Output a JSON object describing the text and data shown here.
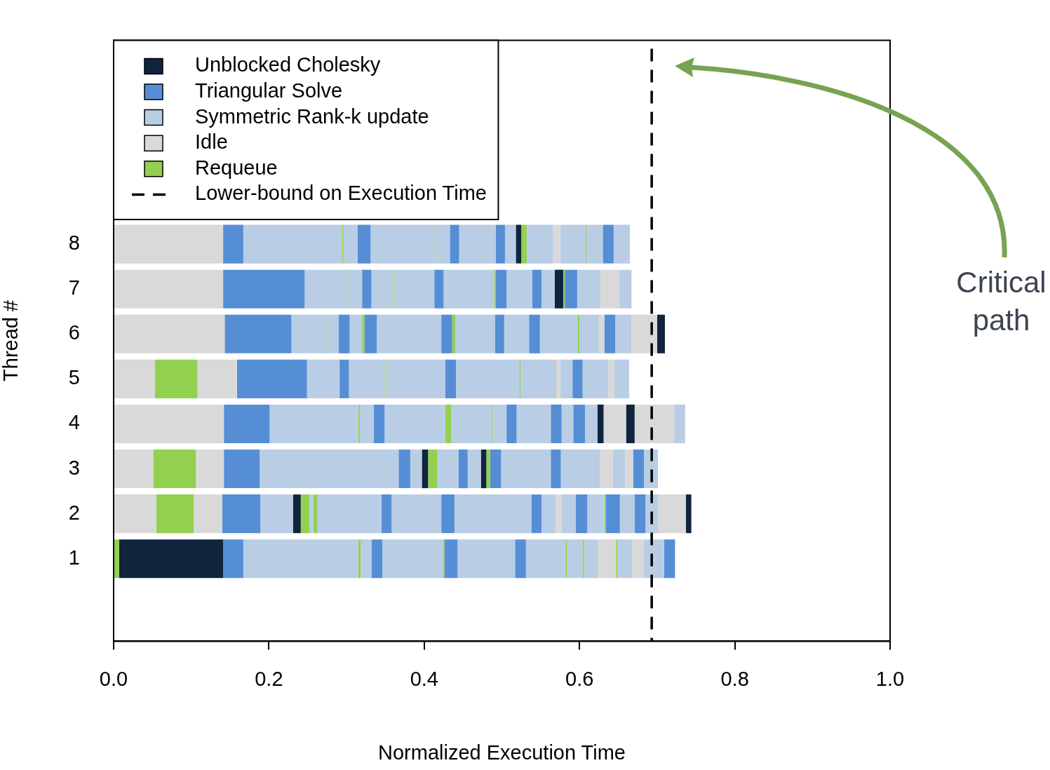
{
  "chart_data": {
    "type": "bar",
    "orientation": "horizontal",
    "stacked": true,
    "categories": [
      "8",
      "7",
      "6",
      "5",
      "4",
      "3",
      "2",
      "1"
    ],
    "xlabel": "Normalized Execution Time",
    "ylabel": "Thread #",
    "xlim": [
      0,
      1
    ],
    "xticks": [
      {
        "value": 0,
        "label": "0.0"
      },
      0.2,
      0.4,
      0.6,
      0.8,
      {
        "value": 1,
        "label": "1.0"
      }
    ],
    "legend": "top left",
    "ref_lines": [
      {
        "axis": "x",
        "value": 0.693,
        "label": "Lower-bound on Execution Time",
        "color": "#000000",
        "line_style": "dashed"
      }
    ],
    "annotations": [
      "Critical path"
    ],
    "series": [
      {
        "name": "Unblocked Cholesky",
        "color": "#10243e",
        "values": [
          null,
          null,
          null,
          null,
          null,
          null,
          null,
          null
        ]
      },
      {
        "name": "Triangular Solve",
        "color": "#558ed5",
        "values": [
          null,
          null,
          null,
          null,
          null,
          null,
          null,
          null
        ]
      },
      {
        "name": "Symmetric Rank-k update",
        "color": "#b9cde5",
        "values": [
          null,
          null,
          null,
          null,
          null,
          null,
          null,
          null
        ]
      },
      {
        "name": "Idle",
        "color": "#d9d9d9",
        "values": [
          null,
          null,
          null,
          null,
          null,
          null,
          null,
          null
        ]
      },
      {
        "name": "Requeue",
        "color": "#92d050",
        "values": [
          null,
          null,
          null,
          null,
          null,
          null,
          null,
          null
        ]
      },
      {
        "values": [
          0.141,
          0.141,
          0.143,
          0.053,
          0.142,
          0.051,
          0.055,
          0.007
        ],
        "colors": [
          "#d9d9d9",
          "#d9d9d9",
          "#d9d9d9",
          "#d9d9d9",
          "#d9d9d9",
          "#d9d9d9",
          "#d9d9d9",
          "#92d050"
        ]
      },
      {
        "values": [
          0.026,
          0.105,
          0.086,
          0.055,
          0.059,
          0.055,
          0.048,
          0.134
        ],
        "colors": [
          "#558ed5",
          "#558ed5",
          "#558ed5",
          "#92d050",
          "#558ed5",
          "#92d050",
          "#92d050",
          "#10243e"
        ]
      },
      {
        "values": [
          0.127,
          0.057,
          0.044,
          0.051,
          0.114,
          0.036,
          0.037,
          0.026
        ],
        "colors": [
          "#b9cde5",
          "#b9cde5",
          "#b9cde5",
          "#d9d9d9",
          "#b9cde5",
          "#d9d9d9",
          "#d9d9d9",
          "#558ed5"
        ]
      },
      {
        "values": [
          0.002,
          0.001,
          0.001,
          0.09,
          0.002,
          0.046,
          0.049,
          0.148
        ],
        "colors": [
          "#92d050",
          "#92d050",
          "#92d050",
          "#558ed5",
          "#92d050",
          "#558ed5",
          "#558ed5",
          "#b9cde5"
        ]
      },
      {
        "values": [
          0.018,
          0.016,
          0.016,
          0.042,
          0.018,
          0.179,
          0.042,
          0.003
        ],
        "colors": [
          "#b9cde5",
          "#b9cde5",
          "#b9cde5",
          "#b9cde5",
          "#b9cde5",
          "#b9cde5",
          "#b9cde5",
          "#92d050"
        ]
      },
      {
        "values": [
          0.017,
          0.012,
          0.014,
          0.012,
          0.014,
          0.015,
          0.01,
          0.014
        ],
        "colors": [
          "#558ed5",
          "#558ed5",
          "#558ed5",
          "#558ed5",
          "#558ed5",
          "#558ed5",
          "#10243e",
          "#b9cde5"
        ]
      },
      {
        "values": [
          0.085,
          0.029,
          0.016,
          0.048,
          0.078,
          0.015,
          0.011,
          0.014
        ],
        "colors": [
          "#b9cde5",
          "#b9cde5",
          "#b9cde5",
          "#b9cde5",
          "#b9cde5",
          "#b9cde5",
          "#92d050",
          "#558ed5"
        ]
      },
      {
        "values": [
          0.001,
          0.001,
          0.003,
          0.001,
          0.008,
          0.008,
          0.005,
          0.078
        ],
        "colors": [
          "#92d050",
          "#92d050",
          "#92d050",
          "#92d050",
          "#92d050",
          "#10243e",
          "#b9cde5",
          "#b9cde5"
        ]
      },
      {
        "values": [
          0.016,
          0.051,
          0.016,
          0.075,
          0.052,
          0.012,
          0.005,
          0.002
        ],
        "colors": [
          "#b9cde5",
          "#b9cde5",
          "#558ed5",
          "#b9cde5",
          "#b9cde5",
          "#92d050",
          "#92d050",
          "#92d050"
        ]
      },
      {
        "values": [
          0.012,
          0.012,
          0.083,
          0.014,
          0.001,
          0.027,
          0.083,
          0.017
        ],
        "colors": [
          "#558ed5",
          "#558ed5",
          "#b9cde5",
          "#558ed5",
          "#92d050",
          "#b9cde5",
          "#b9cde5",
          "#558ed5"
        ]
      },
      {
        "values": [
          0.047,
          0.065,
          0.014,
          0.082,
          0.018,
          0.012,
          0.013,
          0.074
        ],
        "colors": [
          "#b9cde5",
          "#b9cde5",
          "#558ed5",
          "#b9cde5",
          "#b9cde5",
          "#558ed5",
          "#558ed5",
          "#b9cde5"
        ]
      },
      {
        "values": [
          0.012,
          0.002,
          0.004,
          0.001,
          0.013,
          0.017,
          0.064,
          0.014
        ],
        "colors": [
          "#558ed5",
          "#92d050",
          "#92d050",
          "#92d050",
          "#558ed5",
          "#b9cde5",
          "#b9cde5",
          "#558ed5"
        ]
      },
      {
        "values": [
          0.014,
          0.014,
          0.051,
          0.046,
          0.044,
          0.007,
          0.017,
          0.051
        ],
        "colors": [
          "#b9cde5",
          "#558ed5",
          "#b9cde5",
          "#b9cde5",
          "#b9cde5",
          "#10243e",
          "#558ed5",
          "#b9cde5"
        ]
      },
      {
        "values": [
          0.007,
          0.033,
          0.012,
          0.005,
          0.014,
          0.005,
          0.099,
          0.002
        ],
        "colors": [
          "#10243e",
          "#b9cde5",
          "#558ed5",
          "#d9d9d9",
          "#558ed5",
          "#92d050",
          "#b9cde5",
          "#92d050"
        ]
      },
      {
        "values": [
          0.007,
          0.012,
          0.032,
          0.016,
          0.015,
          0.014,
          0.013,
          0.02
        ],
        "colors": [
          "#92d050",
          "#558ed5",
          "#b9cde5",
          "#b9cde5",
          "#b9cde5",
          "#558ed5",
          "#558ed5",
          "#b9cde5"
        ]
      },
      {
        "values": [
          0.034,
          0.017,
          0.014,
          0.013,
          0.015,
          0.064,
          0.018,
          0.002
        ],
        "colors": [
          "#b9cde5",
          "#b9cde5",
          "#558ed5",
          "#558ed5",
          "#558ed5",
          "#b9cde5",
          "#b9cde5",
          "#92d050"
        ]
      },
      {
        "values": [
          0.009,
          0.011,
          0.049,
          0.033,
          0.016,
          0.013,
          0.008,
          0.018
        ],
        "colors": [
          "#d9d9d9",
          "#10243e",
          "#b9cde5",
          "#b9cde5",
          "#b9cde5",
          "#558ed5",
          "#d9d9d9",
          "#b9cde5"
        ]
      },
      {
        "values": [
          0.033,
          0.002,
          0.002,
          0.008,
          0.008,
          0.05,
          0.018,
          0.023
        ],
        "colors": [
          "#b9cde5",
          "#92d050",
          "#92d050",
          "#d9d9d9",
          "#10243e",
          "#b9cde5",
          "#b9cde5",
          "#d9d9d9"
        ]
      },
      {
        "values": [
          0.001,
          0.016,
          0.025,
          0.019,
          0.029,
          0.017,
          0.015,
          0.002
        ],
        "colors": [
          "#92d050",
          "#558ed5",
          "#b9cde5",
          "#b9cde5",
          "#d9d9d9",
          "#d9d9d9",
          "#558ed5",
          "#92d050"
        ]
      },
      {
        "values": [
          0.021,
          0.03,
          0.007,
          null,
          0.011,
          0.016,
          0.022,
          0.019
        ],
        "colors": [
          "#b9cde5",
          "#b9cde5",
          "#d9d9d9",
          null,
          "#10243e",
          "#b9cde5",
          "#b9cde5",
          "#b9cde5"
        ]
      },
      {
        "values": [
          0.014,
          0.024,
          0.014,
          null,
          0.051,
          0.01,
          0.002,
          0.015
        ],
        "colors": [
          "#558ed5",
          "#d9d9d9",
          "#558ed5",
          null,
          "#d9d9d9",
          "#d9d9d9",
          "#92d050",
          "#d9d9d9"
        ]
      },
      {
        "values": [
          0.021,
          0.016,
          0.021,
          null,
          0.014,
          0.014,
          0.018,
          0.026
        ],
        "colors": [
          "#b9cde5",
          "#b9cde5",
          "#b9cde5",
          null,
          "#b9cde5",
          "#558ed5",
          "#558ed5",
          "#b9cde5"
        ]
      },
      {
        "values": [
          null,
          null,
          0.033,
          null,
          null,
          0.018,
          0.019,
          0.014
        ],
        "colors": [
          null,
          null,
          "#d9d9d9",
          null,
          null,
          "#b9cde5",
          "#b9cde5",
          "#558ed5"
        ]
      },
      {
        "values": [
          null,
          null,
          0.01,
          null,
          null,
          null,
          0.014,
          null
        ],
        "colors": [
          null,
          null,
          "#10243e",
          null,
          null,
          null,
          "#558ed5",
          null
        ]
      },
      {
        "values": [
          null,
          null,
          null,
          null,
          null,
          null,
          0.016,
          null
        ],
        "colors": [
          null,
          null,
          null,
          null,
          null,
          null,
          "#b9cde5",
          null
        ]
      },
      {
        "values": [
          null,
          null,
          null,
          null,
          null,
          null,
          0.036,
          null
        ],
        "colors": [
          null,
          null,
          null,
          null,
          null,
          null,
          "#d9d9d9",
          null
        ]
      },
      {
        "values": [
          null,
          null,
          null,
          null,
          null,
          null,
          0.007,
          null
        ],
        "colors": [
          null,
          null,
          null,
          null,
          null,
          null,
          "#10243e",
          null
        ]
      }
    ]
  }
}
